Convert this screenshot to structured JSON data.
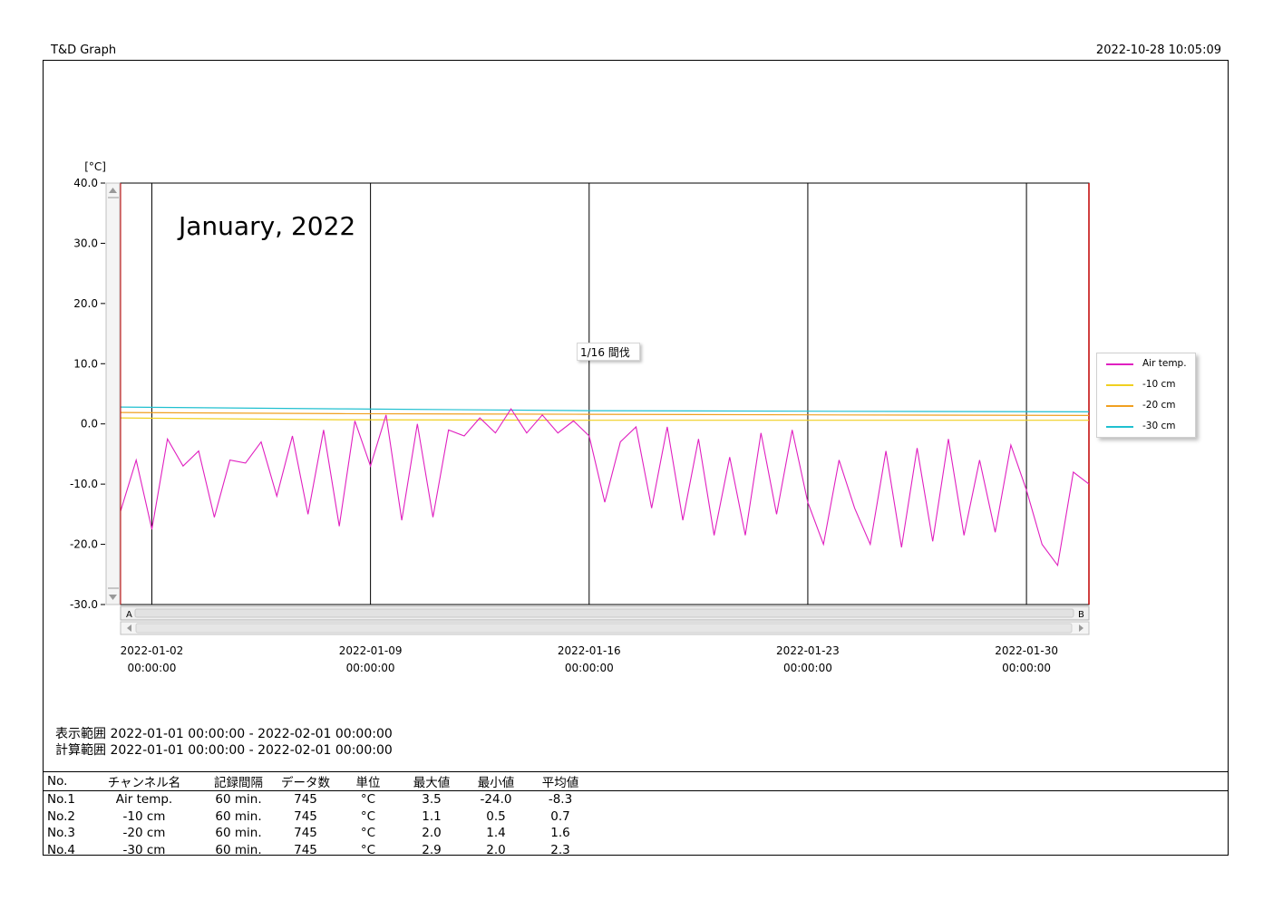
{
  "header": {
    "app_title": "T&D Graph",
    "print_time": "2022-10-28 10:05:09"
  },
  "colors": {
    "air": "#e020c0",
    "c10": "#f0d020",
    "c20": "#f0a020",
    "c30": "#20c0d0",
    "frame": "#000000",
    "right_edge": "#c00000"
  },
  "scrollbar": {
    "left_label": "A",
    "right_label": "B"
  },
  "note": {
    "text": "1/16 間伐"
  },
  "chart_data": {
    "type": "line",
    "title": "January, 2022",
    "ylabel": "[°C]",
    "ylim": [
      -30,
      40
    ],
    "xlim": [
      "2022-01-01 00:00:00",
      "2022-02-01 00:00:00"
    ],
    "y_ticks": [
      "40.0",
      "30.0",
      "20.0",
      "10.0",
      "0.0",
      "-10.0",
      "-20.0",
      "-30.0"
    ],
    "x_ticks": [
      {
        "date": "2022-01-02",
        "time": "00:00:00"
      },
      {
        "date": "2022-01-09",
        "time": "00:00:00"
      },
      {
        "date": "2022-01-16",
        "time": "00:00:00"
      },
      {
        "date": "2022-01-23",
        "time": "00:00:00"
      },
      {
        "date": "2022-01-30",
        "time": "00:00:00"
      }
    ],
    "legend": [
      "Air temp.",
      "-10 cm",
      "-20 cm",
      "-30 cm"
    ],
    "series": [
      {
        "name": "Air temp.",
        "color": "#e020c0",
        "x": [
          "2022-01-01 00:00:00",
          "2022-01-01 12:00:00",
          "2022-01-02 00:00:00",
          "2022-01-02 12:00:00",
          "2022-01-03 00:00:00",
          "2022-01-03 12:00:00",
          "2022-01-04 00:00:00",
          "2022-01-04 12:00:00",
          "2022-01-05 00:00:00",
          "2022-01-05 12:00:00",
          "2022-01-06 00:00:00",
          "2022-01-06 12:00:00",
          "2022-01-07 00:00:00",
          "2022-01-07 12:00:00",
          "2022-01-08 00:00:00",
          "2022-01-08 12:00:00",
          "2022-01-09 00:00:00",
          "2022-01-09 12:00:00",
          "2022-01-10 00:00:00",
          "2022-01-10 12:00:00",
          "2022-01-11 00:00:00",
          "2022-01-11 12:00:00",
          "2022-01-12 00:00:00",
          "2022-01-12 12:00:00",
          "2022-01-13 00:00:00",
          "2022-01-13 12:00:00",
          "2022-01-14 00:00:00",
          "2022-01-14 12:00:00",
          "2022-01-15 00:00:00",
          "2022-01-15 12:00:00",
          "2022-01-16 00:00:00",
          "2022-01-16 12:00:00",
          "2022-01-17 00:00:00",
          "2022-01-17 12:00:00",
          "2022-01-18 00:00:00",
          "2022-01-18 12:00:00",
          "2022-01-19 00:00:00",
          "2022-01-19 12:00:00",
          "2022-01-20 00:00:00",
          "2022-01-20 12:00:00",
          "2022-01-21 00:00:00",
          "2022-01-21 12:00:00",
          "2022-01-22 00:00:00",
          "2022-01-22 12:00:00",
          "2022-01-23 00:00:00",
          "2022-01-23 12:00:00",
          "2022-01-24 00:00:00",
          "2022-01-24 12:00:00",
          "2022-01-25 00:00:00",
          "2022-01-25 12:00:00",
          "2022-01-26 00:00:00",
          "2022-01-26 12:00:00",
          "2022-01-27 00:00:00",
          "2022-01-27 12:00:00",
          "2022-01-28 00:00:00",
          "2022-01-28 12:00:00",
          "2022-01-29 00:00:00",
          "2022-01-29 12:00:00",
          "2022-01-30 00:00:00",
          "2022-01-30 12:00:00",
          "2022-01-31 00:00:00",
          "2022-01-31 12:00:00",
          "2022-02-01 00:00:00"
        ],
        "y": [
          -14.5,
          -6.0,
          -17.5,
          -2.5,
          -7.0,
          -4.5,
          -15.5,
          -6.0,
          -6.5,
          -3.0,
          -12.0,
          -2.0,
          -15.0,
          -1.0,
          -17.0,
          0.5,
          -7.0,
          1.5,
          -16.0,
          0.0,
          -15.5,
          -1.0,
          -2.0,
          1.0,
          -1.5,
          2.5,
          -1.5,
          1.5,
          -1.5,
          0.5,
          -2.0,
          -13.0,
          -3.0,
          -0.5,
          -14.0,
          -0.5,
          -16.0,
          -2.5,
          -18.5,
          -5.5,
          -18.5,
          -1.5,
          -15.0,
          -1.0,
          -13.0,
          -20.0,
          -6.0,
          -14.0,
          -20.0,
          -4.5,
          -20.5,
          -4.0,
          -19.5,
          -2.5,
          -18.5,
          -6.0,
          -18.0,
          -3.5,
          -11.0,
          -20.0,
          -23.5,
          -8.0,
          -10.0
        ]
      },
      {
        "name": "-10 cm",
        "color": "#f0d020",
        "x": [
          "2022-01-01 00:00:00",
          "2022-01-08 00:00:00",
          "2022-01-16 00:00:00",
          "2022-01-24 00:00:00",
          "2022-02-01 00:00:00"
        ],
        "y": [
          1.0,
          0.7,
          0.6,
          0.6,
          0.6
        ]
      },
      {
        "name": "-20 cm",
        "color": "#f0a020",
        "x": [
          "2022-01-01 00:00:00",
          "2022-01-08 00:00:00",
          "2022-01-16 00:00:00",
          "2022-01-24 00:00:00",
          "2022-02-01 00:00:00"
        ],
        "y": [
          1.9,
          1.7,
          1.6,
          1.5,
          1.4
        ]
      },
      {
        "name": "-30 cm",
        "color": "#20c0d0",
        "x": [
          "2022-01-01 00:00:00",
          "2022-01-08 00:00:00",
          "2022-01-16 00:00:00",
          "2022-01-24 00:00:00",
          "2022-02-01 00:00:00"
        ],
        "y": [
          2.8,
          2.5,
          2.2,
          2.1,
          2.0
        ]
      }
    ]
  },
  "ranges": {
    "display": "表示範囲 2022-01-01 00:00:00 - 2022-02-01 00:00:00",
    "calc": "計算範囲 2022-01-01 00:00:00 - 2022-02-01 00:00:00"
  },
  "stats": {
    "headers": [
      "No.",
      "チャンネル名",
      "記録間隔",
      "データ数",
      "単位",
      "最大値",
      "最小値",
      "平均値"
    ],
    "rows": [
      [
        "No.1",
        "Air temp.",
        "60 min.",
        "745",
        "°C",
        "3.5",
        "-24.0",
        "-8.3"
      ],
      [
        "No.2",
        "-10 cm",
        "60 min.",
        "745",
        "°C",
        "1.1",
        "0.5",
        "0.7"
      ],
      [
        "No.3",
        "-20 cm",
        "60 min.",
        "745",
        "°C",
        "2.0",
        "1.4",
        "1.6"
      ],
      [
        "No.4",
        "-30 cm",
        "60 min.",
        "745",
        "°C",
        "2.9",
        "2.0",
        "2.3"
      ]
    ]
  }
}
